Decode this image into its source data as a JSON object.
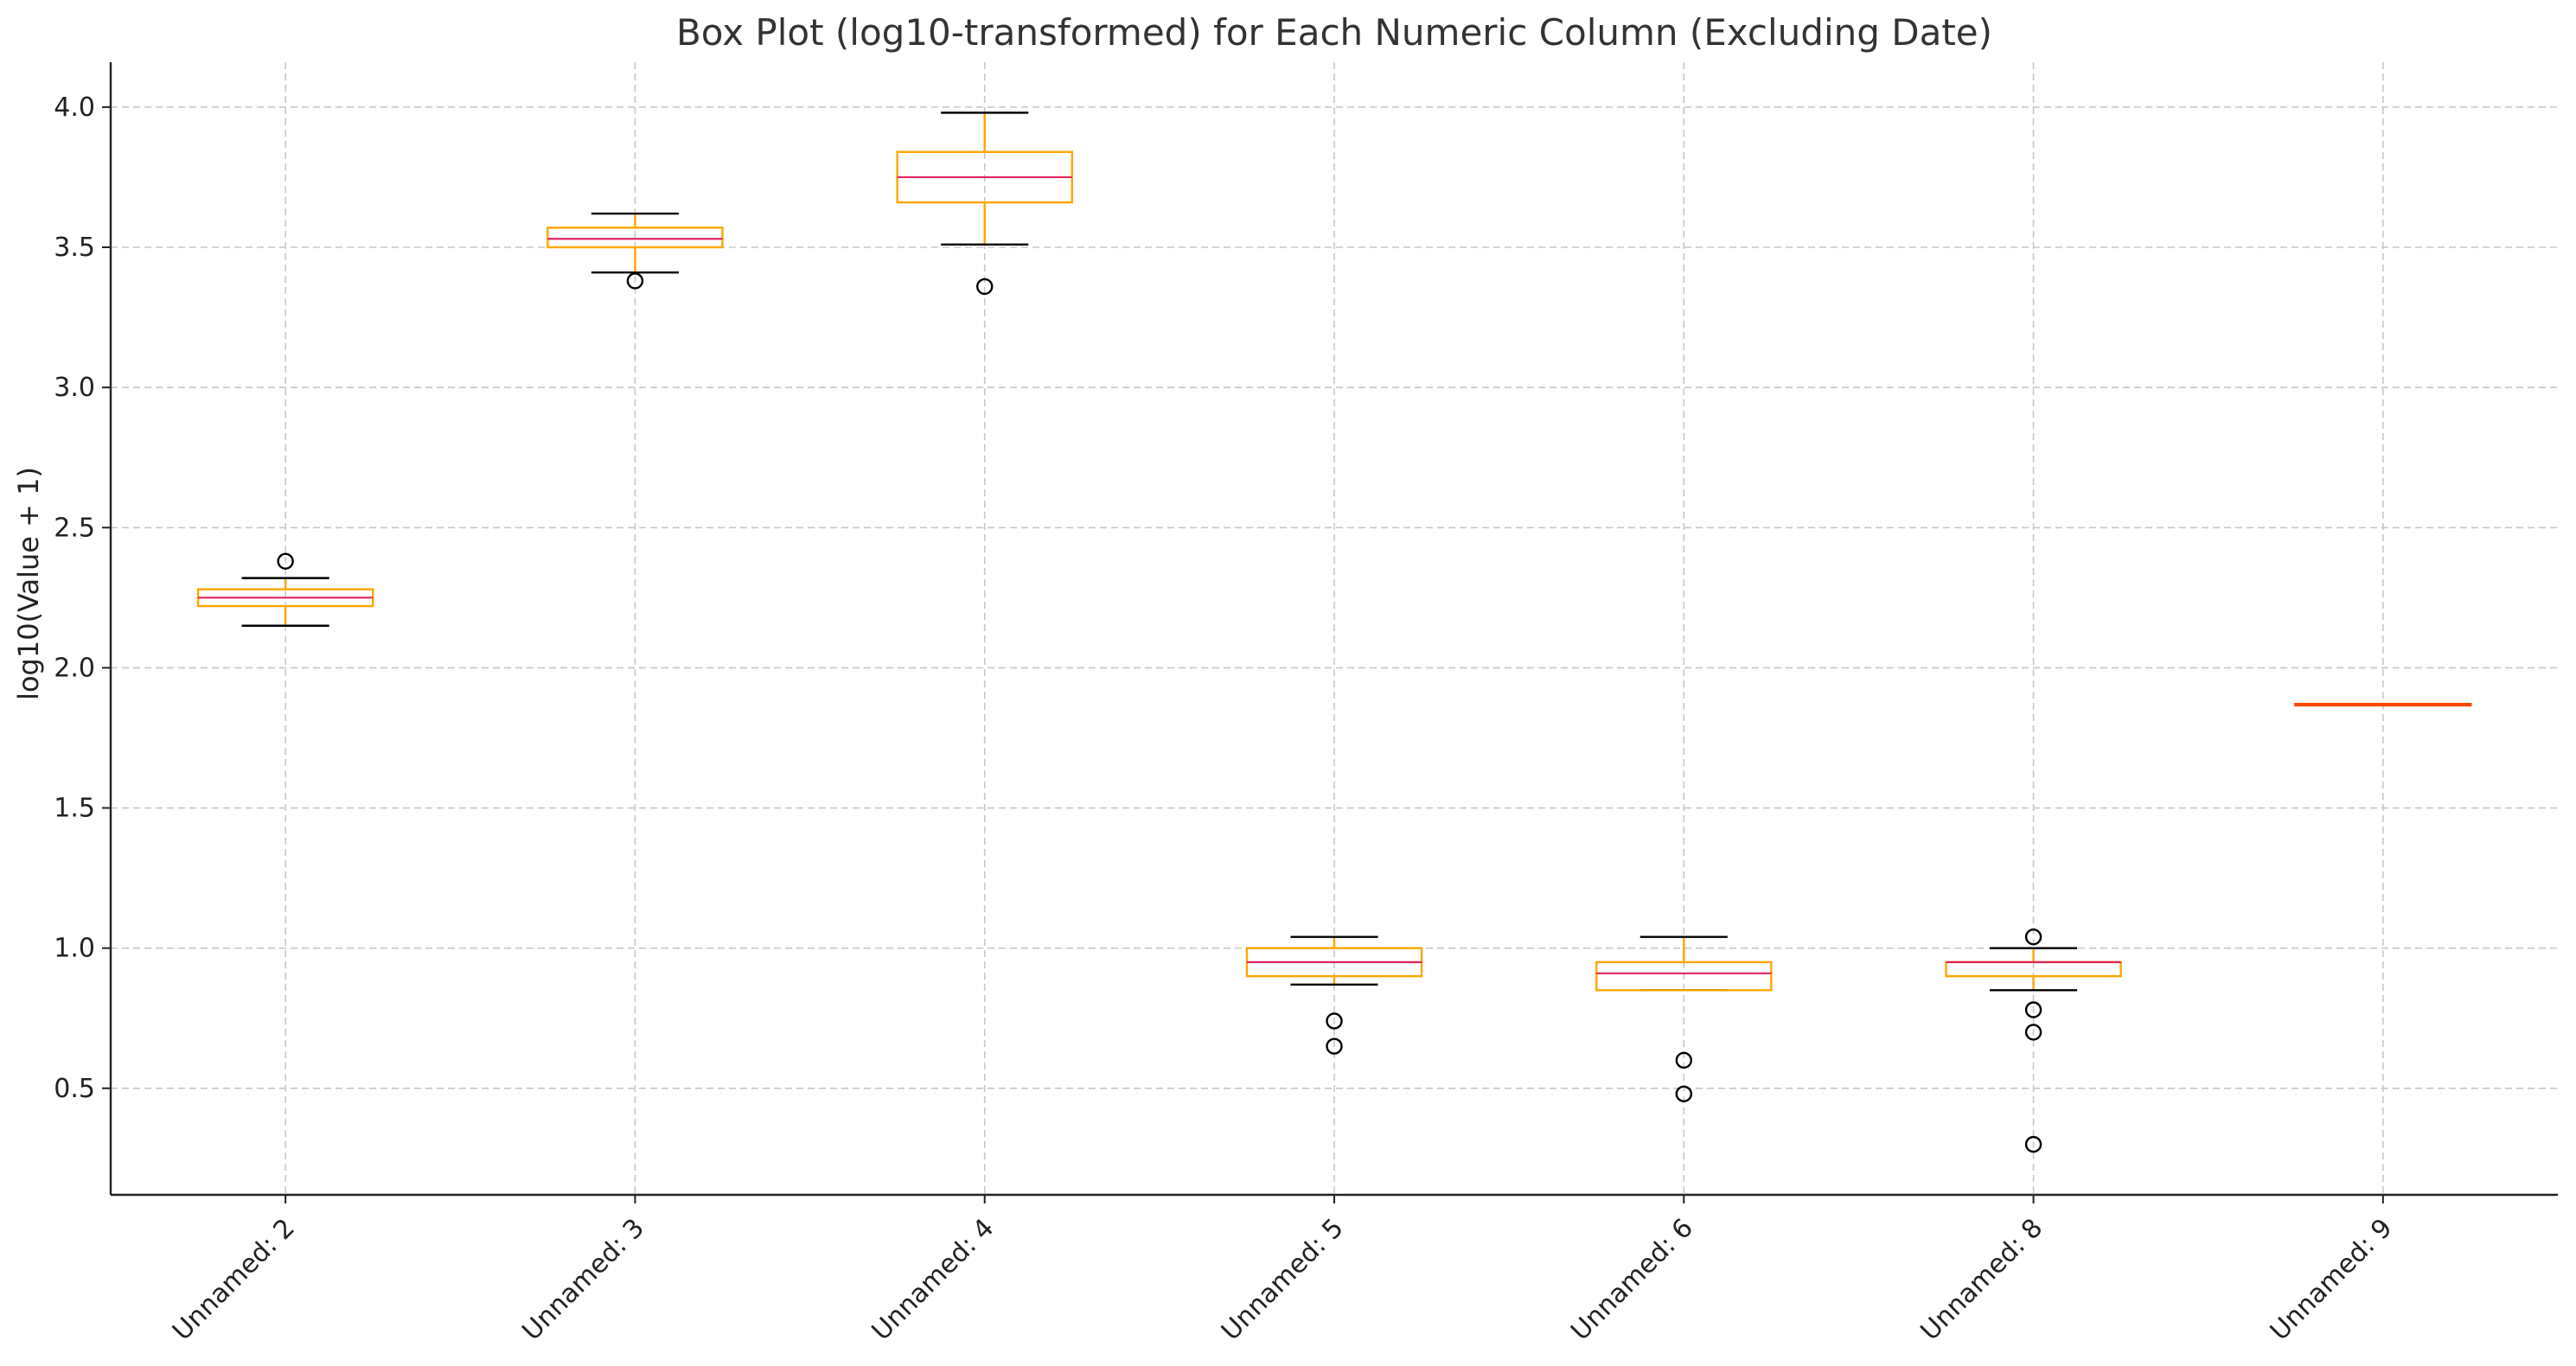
{
  "chart_data": {
    "type": "box",
    "title": "Box Plot (log10-transformed) for Each Numeric Column (Excluding Date)",
    "xlabel": "",
    "ylabel": "log10(Value + 1)",
    "ylim": [
      0.12,
      4.16
    ],
    "yticks": [
      "0.5",
      "1.0",
      "1.5",
      "2.0",
      "2.5",
      "3.0",
      "3.5",
      "4.0"
    ],
    "grid": true,
    "categories": [
      "Unnamed: 2",
      "Unnamed: 3",
      "Unnamed: 4",
      "Unnamed: 5",
      "Unnamed: 6",
      "Unnamed: 8",
      "Unnamed: 9"
    ],
    "boxes": [
      {
        "whisker_low": 2.15,
        "q1": 2.22,
        "median": 2.25,
        "q3": 2.28,
        "whisker_high": 2.32,
        "outliers": [
          2.38
        ]
      },
      {
        "whisker_low": 3.41,
        "q1": 3.5,
        "median": 3.53,
        "q3": 3.57,
        "whisker_high": 3.62,
        "outliers": [
          3.38
        ]
      },
      {
        "whisker_low": 3.51,
        "q1": 3.66,
        "median": 3.75,
        "q3": 3.84,
        "whisker_high": 3.98,
        "outliers": [
          3.36
        ]
      },
      {
        "whisker_low": 0.87,
        "q1": 0.9,
        "median": 0.95,
        "q3": 1.0,
        "whisker_high": 1.04,
        "outliers": [
          0.74,
          0.65
        ]
      },
      {
        "whisker_low": 0.85,
        "q1": 0.85,
        "median": 0.91,
        "q3": 0.95,
        "whisker_high": 1.04,
        "outliers": [
          0.6,
          0.48
        ]
      },
      {
        "whisker_low": 0.85,
        "q1": 0.9,
        "median": 0.95,
        "q3": 0.95,
        "whisker_high": 1.0,
        "outliers": [
          1.04,
          0.78,
          0.7,
          0.3
        ]
      },
      {
        "whisker_low": 1.87,
        "q1": 1.87,
        "median": 1.87,
        "q3": 1.87,
        "whisker_high": 1.87,
        "outliers": []
      }
    ],
    "colors": {
      "box": "#ffa500",
      "median": "#e0245e",
      "whisker_cap": "#000000",
      "outlier": "#000000",
      "flat_box": "#ff4500"
    }
  }
}
